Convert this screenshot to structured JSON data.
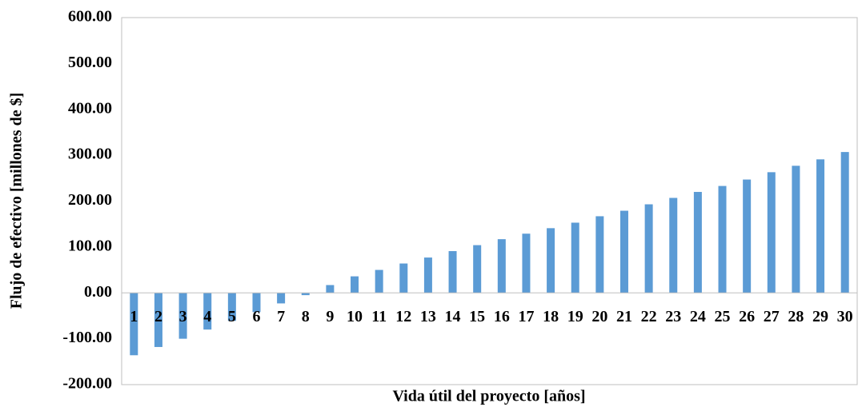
{
  "chart_data": {
    "type": "bar",
    "x_label": "Vida útil del proyecto [años]",
    "y_label": "Flujo de efectivo [millones de $]",
    "categories": [
      "1",
      "2",
      "3",
      "4",
      "5",
      "6",
      "7",
      "8",
      "9",
      "10",
      "11",
      "12",
      "13",
      "14",
      "15",
      "16",
      "17",
      "18",
      "19",
      "20",
      "21",
      "22",
      "23",
      "24",
      "25",
      "26",
      "27",
      "28",
      "29",
      "30"
    ],
    "values": [
      -136,
      -118,
      -100,
      -80,
      -61,
      -42,
      -23,
      -5,
      17,
      36,
      50,
      64,
      77,
      91,
      104,
      117,
      129,
      141,
      153,
      167,
      179,
      193,
      207,
      220,
      233,
      247,
      263,
      277,
      291,
      307
    ],
    "color": "#5b9bd5",
    "ylim": [
      -200,
      600
    ],
    "yticks": [
      {
        "value": -200,
        "label": "-200.00"
      },
      {
        "value": -100,
        "label": "-100.00"
      },
      {
        "value": 0,
        "label": "0.00"
      },
      {
        "value": 100,
        "label": "100.00"
      },
      {
        "value": 200,
        "label": "200.00"
      },
      {
        "value": 300,
        "label": "300.00"
      },
      {
        "value": 400,
        "label": "400.00"
      },
      {
        "value": 500,
        "label": "500.00"
      },
      {
        "value": 600,
        "label": "600.00"
      }
    ],
    "grid": false
  }
}
